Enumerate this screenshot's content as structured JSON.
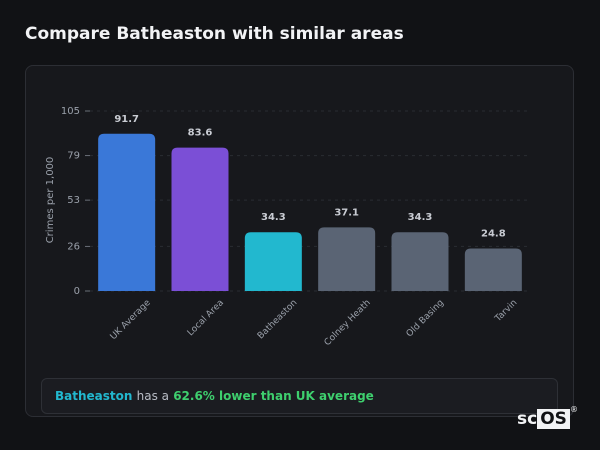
{
  "title": "Compare Batheaston with similar areas",
  "chart_data": {
    "type": "bar",
    "ylabel": "Crimes per 1,000",
    "categories": [
      "UK Average",
      "Local Area",
      "Batheaston",
      "Colney Heath",
      "Old Basing",
      "Tarvin"
    ],
    "values": [
      91.7,
      83.6,
      34.3,
      37.1,
      34.3,
      24.8
    ],
    "colors": [
      "#3a78d8",
      "#7b4fd6",
      "#22b8cf",
      "#5a6474",
      "#5a6474",
      "#5a6474"
    ],
    "ylim": [
      0,
      105
    ],
    "yticks": [
      0,
      26,
      53,
      79,
      105
    ],
    "grid": true
  },
  "summary": {
    "area": "Batheaston",
    "middle": "has a",
    "highlight": "62.6% lower than UK average"
  },
  "logo": {
    "left": "sc",
    "right": "OS",
    "mark": "®"
  }
}
